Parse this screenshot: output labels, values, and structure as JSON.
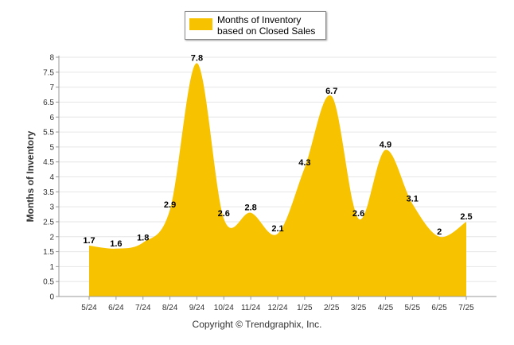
{
  "legend": {
    "label": "Months of Inventory based on Closed Sales"
  },
  "footer": {
    "copyright": "Copyright © Trendgraphix, Inc."
  },
  "colors": {
    "area": "#F7C200",
    "grid": "#e6e6e6",
    "axis": "#999999"
  },
  "chart_data": {
    "type": "area",
    "ylabel": "Months of Inventory",
    "xlabel": "",
    "ylim": [
      0,
      8
    ],
    "y_ticks": [
      "0",
      "0.5",
      "1",
      "1.5",
      "2",
      "2.5",
      "3",
      "3.5",
      "4",
      "4.5",
      "5",
      "5.5",
      "6",
      "6.5",
      "7",
      "7.5",
      "8"
    ],
    "categories": [
      "5/24",
      "6/24",
      "7/24",
      "8/24",
      "9/24",
      "10/24",
      "11/24",
      "12/24",
      "1/25",
      "2/25",
      "3/25",
      "4/25",
      "5/25",
      "6/25",
      "7/25"
    ],
    "series": [
      {
        "name": "Months of Inventory based on Closed Sales",
        "values": [
          1.7,
          1.6,
          1.8,
          2.9,
          7.8,
          2.6,
          2.8,
          2.1,
          4.3,
          6.7,
          2.6,
          4.9,
          3.1,
          2,
          2.5
        ],
        "labels": [
          "1.7",
          "1.6",
          "1.8",
          "2.9",
          "7.8",
          "2.6",
          "2.8",
          "2.1",
          "4.3",
          "6.7",
          "2.6",
          "4.9",
          "3.1",
          "2",
          "2.5"
        ]
      }
    ],
    "grid": true,
    "legend_position": "top-center"
  }
}
